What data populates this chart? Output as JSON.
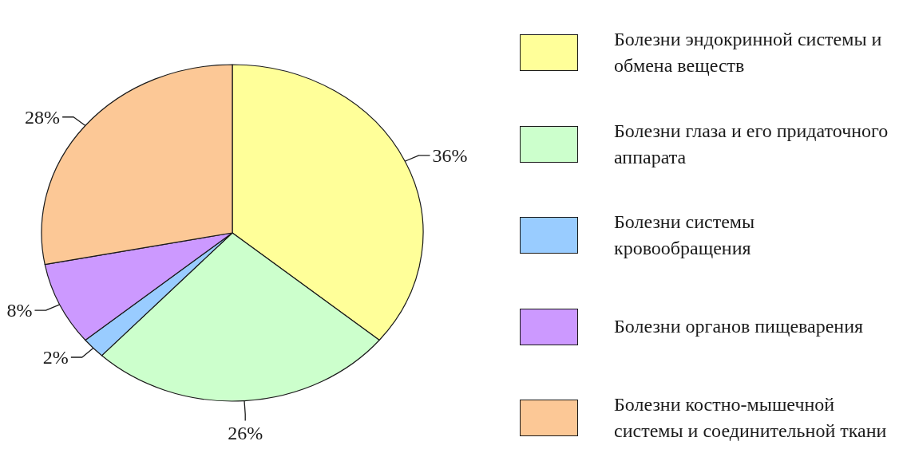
{
  "chart_data": {
    "type": "pie",
    "categories": [
      "Болезни эндокринной системы и обмена веществ",
      "Болезни глаза и его придаточного аппарата",
      "Болезни системы кровообращения",
      "Болезни органов пищеварения",
      "Болезни костно-мышечной системы и соединительной ткани"
    ],
    "values": [
      36,
      26,
      2,
      8,
      28
    ],
    "colors": [
      "#ffff99",
      "#ccffcc",
      "#99ccff",
      "#cc99ff",
      "#fcc896"
    ],
    "value_labels": [
      "36%",
      "26%",
      "2%",
      "8%",
      "28%"
    ],
    "legend": "right"
  }
}
